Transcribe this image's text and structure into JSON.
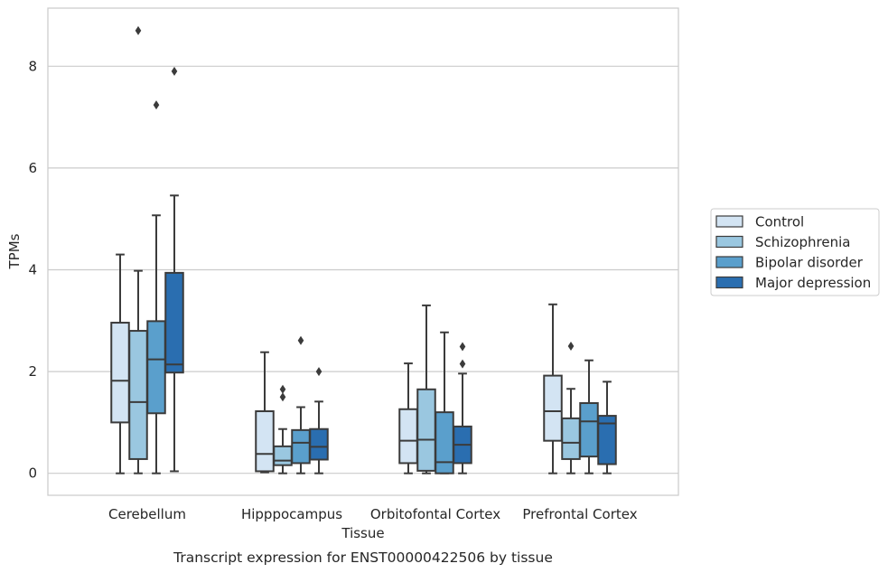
{
  "chart_data": {
    "type": "boxplot",
    "title": "",
    "caption": "Transcript expression for ENST00000422506 by tissue",
    "xlabel": "Tissue",
    "ylabel": "TPMs",
    "ylim": [
      -0.4,
      9.2
    ],
    "yticks": [
      0,
      2,
      4,
      6,
      8
    ],
    "grid": "horizontal",
    "legend_position": "right",
    "categories": [
      "Cerebellum",
      "Hipppocampus",
      "Orbitofontal Cortex",
      "Prefrontal Cortex"
    ],
    "series": [
      {
        "name": "Control",
        "color": "#d3e4f3",
        "boxes": [
          {
            "min": 0.0,
            "q1": 1.0,
            "median": 1.82,
            "q3": 2.96,
            "max": 4.3,
            "outliers": []
          },
          {
            "min": 0.02,
            "q1": 0.04,
            "median": 0.38,
            "q3": 1.22,
            "max": 2.38,
            "outliers": []
          },
          {
            "min": 0.0,
            "q1": 0.2,
            "median": 0.64,
            "q3": 1.26,
            "max": 2.16,
            "outliers": []
          },
          {
            "min": 0.0,
            "q1": 0.64,
            "median": 1.22,
            "q3": 1.92,
            "max": 3.32,
            "outliers": []
          }
        ]
      },
      {
        "name": "Schizophrenia",
        "color": "#9ac7e0",
        "boxes": [
          {
            "min": 0.0,
            "q1": 0.28,
            "median": 1.4,
            "q3": 2.8,
            "max": 3.98,
            "outliers": [
              8.7
            ]
          },
          {
            "min": 0.0,
            "q1": 0.16,
            "median": 0.25,
            "q3": 0.53,
            "max": 0.87,
            "outliers": [
              1.5,
              1.65
            ]
          },
          {
            "min": 0.0,
            "q1": 0.05,
            "median": 0.66,
            "q3": 1.65,
            "max": 3.3,
            "outliers": []
          },
          {
            "min": 0.0,
            "q1": 0.28,
            "median": 0.6,
            "q3": 1.08,
            "max": 1.66,
            "outliers": [
              2.5
            ]
          }
        ]
      },
      {
        "name": "Bipolar disorder",
        "color": "#5a9fcc",
        "boxes": [
          {
            "min": 0.0,
            "q1": 1.18,
            "median": 2.24,
            "q3": 2.99,
            "max": 5.07,
            "outliers": [
              7.24
            ]
          },
          {
            "min": 0.0,
            "q1": 0.2,
            "median": 0.6,
            "q3": 0.85,
            "max": 1.3,
            "outliers": [
              2.61
            ]
          },
          {
            "min": 0.0,
            "q1": 0.0,
            "median": 0.22,
            "q3": 1.2,
            "max": 2.77,
            "outliers": []
          },
          {
            "min": 0.0,
            "q1": 0.33,
            "median": 1.02,
            "q3": 1.38,
            "max": 2.22,
            "outliers": []
          }
        ]
      },
      {
        "name": "Major depression",
        "color": "#2a6eb0",
        "boxes": [
          {
            "min": 0.04,
            "q1": 1.98,
            "median": 2.14,
            "q3": 3.94,
            "max": 5.46,
            "outliers": [
              7.9
            ]
          },
          {
            "min": 0.0,
            "q1": 0.27,
            "median": 0.52,
            "q3": 0.87,
            "max": 1.41,
            "outliers": [
              2.0
            ]
          },
          {
            "min": 0.0,
            "q1": 0.2,
            "median": 0.56,
            "q3": 0.92,
            "max": 1.96,
            "outliers": [
              2.15,
              2.49
            ]
          },
          {
            "min": 0.0,
            "q1": 0.18,
            "median": 0.98,
            "q3": 1.13,
            "max": 1.8,
            "outliers": []
          }
        ]
      }
    ]
  }
}
